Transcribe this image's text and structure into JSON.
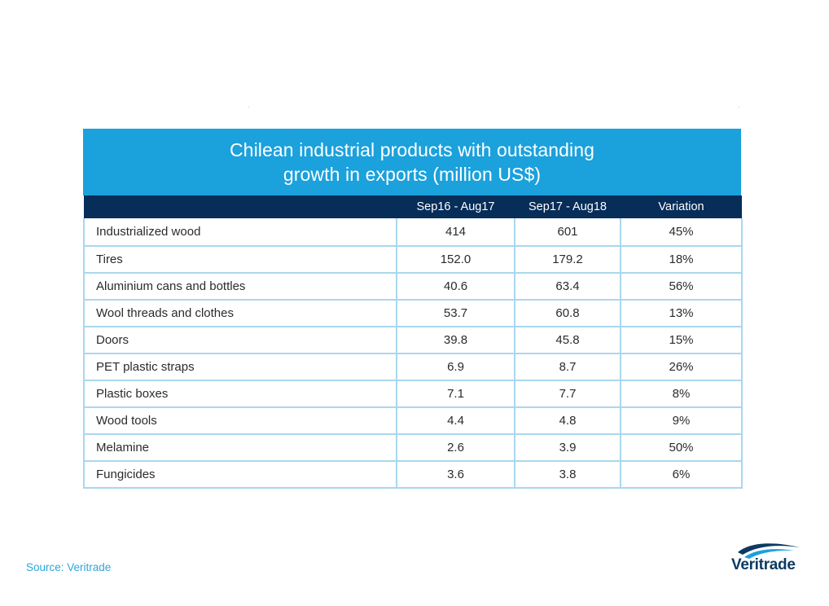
{
  "chart_data": {
    "type": "table",
    "title_line1": "Chilean industrial products with outstanding",
    "title_line2": "growth in exports (million US$)",
    "columns": [
      "",
      "Sep16 - Aug17",
      "Sep17 - Aug18",
      "Variation"
    ],
    "rows": [
      {
        "product": "Industrialized wood",
        "v1": "414",
        "v2": "601",
        "variation": "45%"
      },
      {
        "product": "Tires",
        "v1": "152.0",
        "v2": "179.2",
        "variation": "18%"
      },
      {
        "product": "Aluminium cans and bottles",
        "v1": "40.6",
        "v2": "63.4",
        "variation": "56%"
      },
      {
        "product": "Wool threads and clothes",
        "v1": "53.7",
        "v2": "60.8",
        "variation": "13%"
      },
      {
        "product": "Doors",
        "v1": "39.8",
        "v2": "45.8",
        "variation": "15%"
      },
      {
        "product": "PET plastic straps",
        "v1": "6.9",
        "v2": "8.7",
        "variation": "26%"
      },
      {
        "product": "Plastic boxes",
        "v1": "7.1",
        "v2": "7.7",
        "variation": "8%"
      },
      {
        "product": "Wood tools",
        "v1": "4.4",
        "v2": "4.8",
        "variation": "9%"
      },
      {
        "product": "Melamine",
        "v1": "2.6",
        "v2": "3.9",
        "variation": "50%"
      },
      {
        "product": "Fungicides",
        "v1": "3.6",
        "v2": "3.8",
        "variation": "6%"
      }
    ]
  },
  "footer": {
    "source": "Source: Veritrade",
    "logo_text": "Veritrade"
  },
  "colors": {
    "title_band": "#1ba1dc",
    "header_band": "#072d59",
    "grid_lines": "#a9d7ee",
    "source_text": "#2fa6d8",
    "logo_text": "#0c3a63"
  },
  "icons": {
    "logo": "veritrade-swoosh-logo"
  }
}
